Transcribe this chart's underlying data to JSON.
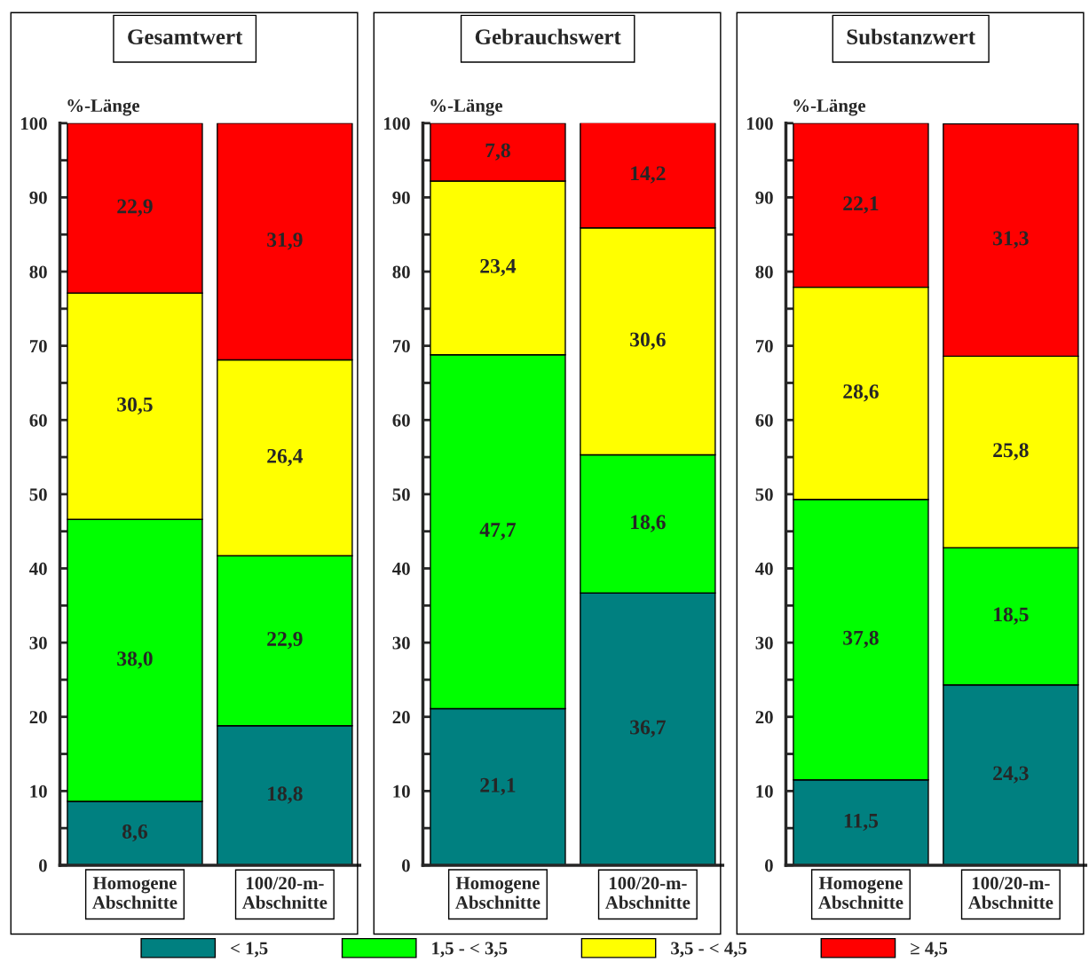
{
  "chart_data": [
    {
      "type": "bar",
      "stacked": true,
      "title": "Gesamtwert",
      "ylabel": "%-Länge",
      "categories": [
        "Homogene\nAbschnitte",
        "100/20-m-\nAbschnitte"
      ],
      "ylim": [
        0,
        100
      ],
      "yticks": [
        0,
        {
          "value": 5,
          "label": null
        },
        10,
        {
          "value": 15,
          "label": null
        },
        20,
        {
          "value": 25,
          "label": null
        },
        30,
        {
          "value": 35,
          "label": null
        },
        40,
        {
          "value": 45,
          "label": null
        },
        50,
        {
          "value": 55,
          "label": null
        },
        60,
        {
          "value": 65,
          "label": null
        },
        70,
        {
          "value": 75,
          "label": null
        },
        80,
        {
          "value": 85,
          "label": null
        },
        90,
        {
          "value": 95,
          "label": null
        },
        100
      ],
      "grid": false,
      "legend": "bottom",
      "series": [
        {
          "name": "< 1,5",
          "color": "#008080",
          "values": [
            8.6,
            18.8
          ],
          "value_labels": [
            "8,6",
            "18,8"
          ]
        },
        {
          "name": "1,5 - < 3,5",
          "color": "#00ff00",
          "values": [
            38.0,
            22.9
          ],
          "value_labels": [
            "38,0",
            "22,9"
          ]
        },
        {
          "name": "3,5 - < 4,5",
          "color": "#ffff00",
          "values": [
            30.5,
            26.4
          ],
          "value_labels": [
            "30,5",
            "26,4"
          ]
        },
        {
          "name": "≥ 4,5",
          "color": "#ff0000",
          "values": [
            22.9,
            31.9
          ],
          "value_labels": [
            "22,9",
            "31,9"
          ]
        }
      ]
    },
    {
      "type": "bar",
      "stacked": true,
      "title": "Gebrauchswert",
      "ylabel": "%-Länge",
      "categories": [
        "Homogene\nAbschnitte",
        "100/20-m-\nAbschnitte"
      ],
      "ylim": [
        0,
        100
      ],
      "yticks": [
        0,
        {
          "value": 5,
          "label": null
        },
        10,
        {
          "value": 15,
          "label": null
        },
        20,
        {
          "value": 25,
          "label": null
        },
        30,
        {
          "value": 35,
          "label": null
        },
        40,
        {
          "value": 45,
          "label": null
        },
        50,
        {
          "value": 55,
          "label": null
        },
        60,
        {
          "value": 65,
          "label": null
        },
        70,
        {
          "value": 75,
          "label": null
        },
        80,
        {
          "value": 85,
          "label": null
        },
        90,
        {
          "value": 95,
          "label": null
        },
        100
      ],
      "grid": false,
      "series": [
        {
          "color": "#008080",
          "values": [
            21.1,
            36.7
          ],
          "value_labels": [
            "21,1",
            "36,7"
          ]
        },
        {
          "color": "#00ff00",
          "values": [
            47.7,
            18.6
          ],
          "value_labels": [
            "47,7",
            "18,6"
          ]
        },
        {
          "color": "#ffff00",
          "values": [
            23.4,
            30.6
          ],
          "value_labels": [
            "23,4",
            "30,6"
          ]
        },
        {
          "color": "#ff0000",
          "values": [
            7.8,
            14.2
          ],
          "value_labels": [
            "7,8",
            "14,2"
          ]
        }
      ]
    },
    {
      "type": "bar",
      "stacked": true,
      "title": "Substanzwert",
      "ylabel": "%-Länge",
      "categories": [
        "Homogene\nAbschnitte",
        "100/20-m-\nAbschnitte"
      ],
      "ylim": [
        0,
        100
      ],
      "yticks": [
        0,
        {
          "value": 5,
          "label": null
        },
        10,
        {
          "value": 15,
          "label": null
        },
        20,
        {
          "value": 25,
          "label": null
        },
        30,
        {
          "value": 35,
          "label": null
        },
        40,
        {
          "value": 45,
          "label": null
        },
        50,
        {
          "value": 55,
          "label": null
        },
        60,
        {
          "value": 65,
          "label": null
        },
        70,
        {
          "value": 75,
          "label": null
        },
        80,
        {
          "value": 85,
          "label": null
        },
        90,
        {
          "value": 95,
          "label": null
        },
        100
      ],
      "grid": false,
      "series": [
        {
          "color": "#008080",
          "values": [
            11.5,
            24.3
          ],
          "value_labels": [
            "11,5",
            "24,3"
          ]
        },
        {
          "color": "#00ff00",
          "values": [
            37.8,
            18.5
          ],
          "value_labels": [
            "37,8",
            "18,5"
          ]
        },
        {
          "color": "#ffff00",
          "values": [
            28.6,
            25.8
          ],
          "value_labels": [
            "28,6",
            "25,8"
          ]
        },
        {
          "color": "#ff0000",
          "values": [
            22.1,
            31.3
          ],
          "value_labels": [
            "22,1",
            "31,3"
          ]
        }
      ]
    }
  ]
}
